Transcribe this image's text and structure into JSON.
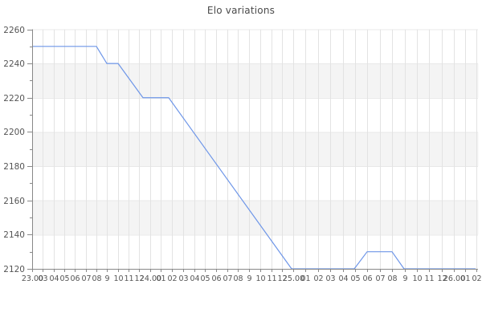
{
  "page": {
    "title": "Elo variations"
  },
  "chart_data": {
    "type": "line",
    "title": "Elo variations",
    "xlabel": "",
    "ylabel": "",
    "ylim": [
      2120,
      2260
    ],
    "y_major_step": 20,
    "y_minor_step": 10,
    "y_tick_labels": [
      "2260",
      "2240",
      "2220",
      "2200",
      "2180",
      "2160",
      "2140",
      "2120"
    ],
    "grid": true,
    "legend": false,
    "layout": {
      "background_bands": "alternating 20-point horizontal bands, gray bands between 2240-2220, 2200-2180, 2160-2140"
    },
    "colors": {
      "line": "#6e96e8",
      "band": "#f4f4f4",
      "grid": "#e3e3e3",
      "hgrid": "#e8e8e8",
      "axis": "#888888",
      "tick_label": "#555555",
      "title": "#4a4a4a",
      "background": "#ffffff"
    },
    "x_ticks": [
      {
        "label": "23.00",
        "pos": 0.0
      },
      {
        "label": "03",
        "pos": 0.0241
      },
      {
        "label": "04",
        "pos": 0.0483
      },
      {
        "label": "05",
        "pos": 0.0723
      },
      {
        "label": "06",
        "pos": 0.0964
      },
      {
        "label": "07",
        "pos": 0.1206
      },
      {
        "label": "08",
        "pos": 0.1447
      },
      {
        "label": "9",
        "pos": 0.1687
      },
      {
        "label": "10",
        "pos": 0.1929
      },
      {
        "label": "11",
        "pos": 0.217
      },
      {
        "label": "12",
        "pos": 0.2411
      },
      {
        "label": "24.00",
        "pos": 0.2653
      },
      {
        "label": "01",
        "pos": 0.29
      },
      {
        "label": "02",
        "pos": 0.3148
      },
      {
        "label": "03",
        "pos": 0.3396
      },
      {
        "label": "04",
        "pos": 0.3645
      },
      {
        "label": "05",
        "pos": 0.3893
      },
      {
        "label": "06",
        "pos": 0.4141
      },
      {
        "label": "07",
        "pos": 0.4389
      },
      {
        "label": "08",
        "pos": 0.4637
      },
      {
        "label": "9",
        "pos": 0.4885
      },
      {
        "label": "10",
        "pos": 0.5132
      },
      {
        "label": "11",
        "pos": 0.5381
      },
      {
        "label": "12",
        "pos": 0.5629
      },
      {
        "label": "25.00",
        "pos": 0.5877
      },
      {
        "label": "01",
        "pos": 0.6156
      },
      {
        "label": "02",
        "pos": 0.6434
      },
      {
        "label": "03",
        "pos": 0.6712
      },
      {
        "label": "04",
        "pos": 0.699
      },
      {
        "label": "05",
        "pos": 0.7268
      },
      {
        "label": "06",
        "pos": 0.7547
      },
      {
        "label": "07",
        "pos": 0.7825
      },
      {
        "label": "08",
        "pos": 0.8103
      },
      {
        "label": "9",
        "pos": 0.8382
      },
      {
        "label": "10",
        "pos": 0.8659
      },
      {
        "label": "11",
        "pos": 0.8937
      },
      {
        "label": "12",
        "pos": 0.9216
      },
      {
        "label": "26.00",
        "pos": 0.9494
      },
      {
        "label": "01",
        "pos": 0.9747
      },
      {
        "label": "02",
        "pos": 1.0
      }
    ],
    "series": [
      {
        "name": "Elo",
        "points": [
          {
            "pos": 0.0,
            "elo": 2250
          },
          {
            "pos": 0.1447,
            "elo": 2250
          },
          {
            "pos": 0.1682,
            "elo": 2240
          },
          {
            "pos": 0.1935,
            "elo": 2240
          },
          {
            "pos": 0.2495,
            "elo": 2220
          },
          {
            "pos": 0.3074,
            "elo": 2220
          },
          {
            "pos": 0.5841,
            "elo": 2120
          },
          {
            "pos": 0.7251,
            "elo": 2120
          },
          {
            "pos": 0.7541,
            "elo": 2130
          },
          {
            "pos": 0.8101,
            "elo": 2130
          },
          {
            "pos": 0.8372,
            "elo": 2120
          },
          {
            "pos": 0.9982,
            "elo": 2120
          }
        ]
      }
    ]
  }
}
